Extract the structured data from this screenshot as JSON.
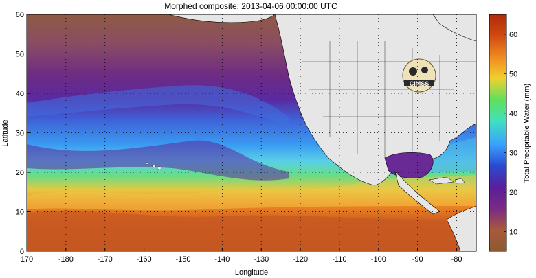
{
  "title": "Morphed composite: 2013-04-06 00:00:00 UTC",
  "map": {
    "xlabel": "Longitude",
    "ylabel": "Latitude",
    "x_ticks": [
      "170",
      "-180",
      "-170",
      "-160",
      "-150",
      "-140",
      "-130",
      "-120",
      "-110",
      "-100",
      "-90",
      "-80"
    ],
    "y_ticks": [
      "0",
      "10",
      "20",
      "30",
      "40",
      "50",
      "60"
    ],
    "lon_range": [
      170,
      285
    ],
    "lat_range": [
      0,
      60
    ],
    "grid": "dotted",
    "logo_text": "CIMSS"
  },
  "colorbar": {
    "label": "Total Precipitable Water (mm)",
    "ticks": [
      "10",
      "20",
      "30",
      "40",
      "50",
      "60"
    ],
    "range": [
      5,
      65
    ],
    "colors": [
      "#8a5a33",
      "#a85a3a",
      "#7a2a86",
      "#5a1f9a",
      "#2a4ad0",
      "#3aa0ff",
      "#40e0c0",
      "#5fe05a",
      "#f0d030",
      "#f08a20",
      "#d04a10",
      "#b02a0a"
    ]
  }
}
